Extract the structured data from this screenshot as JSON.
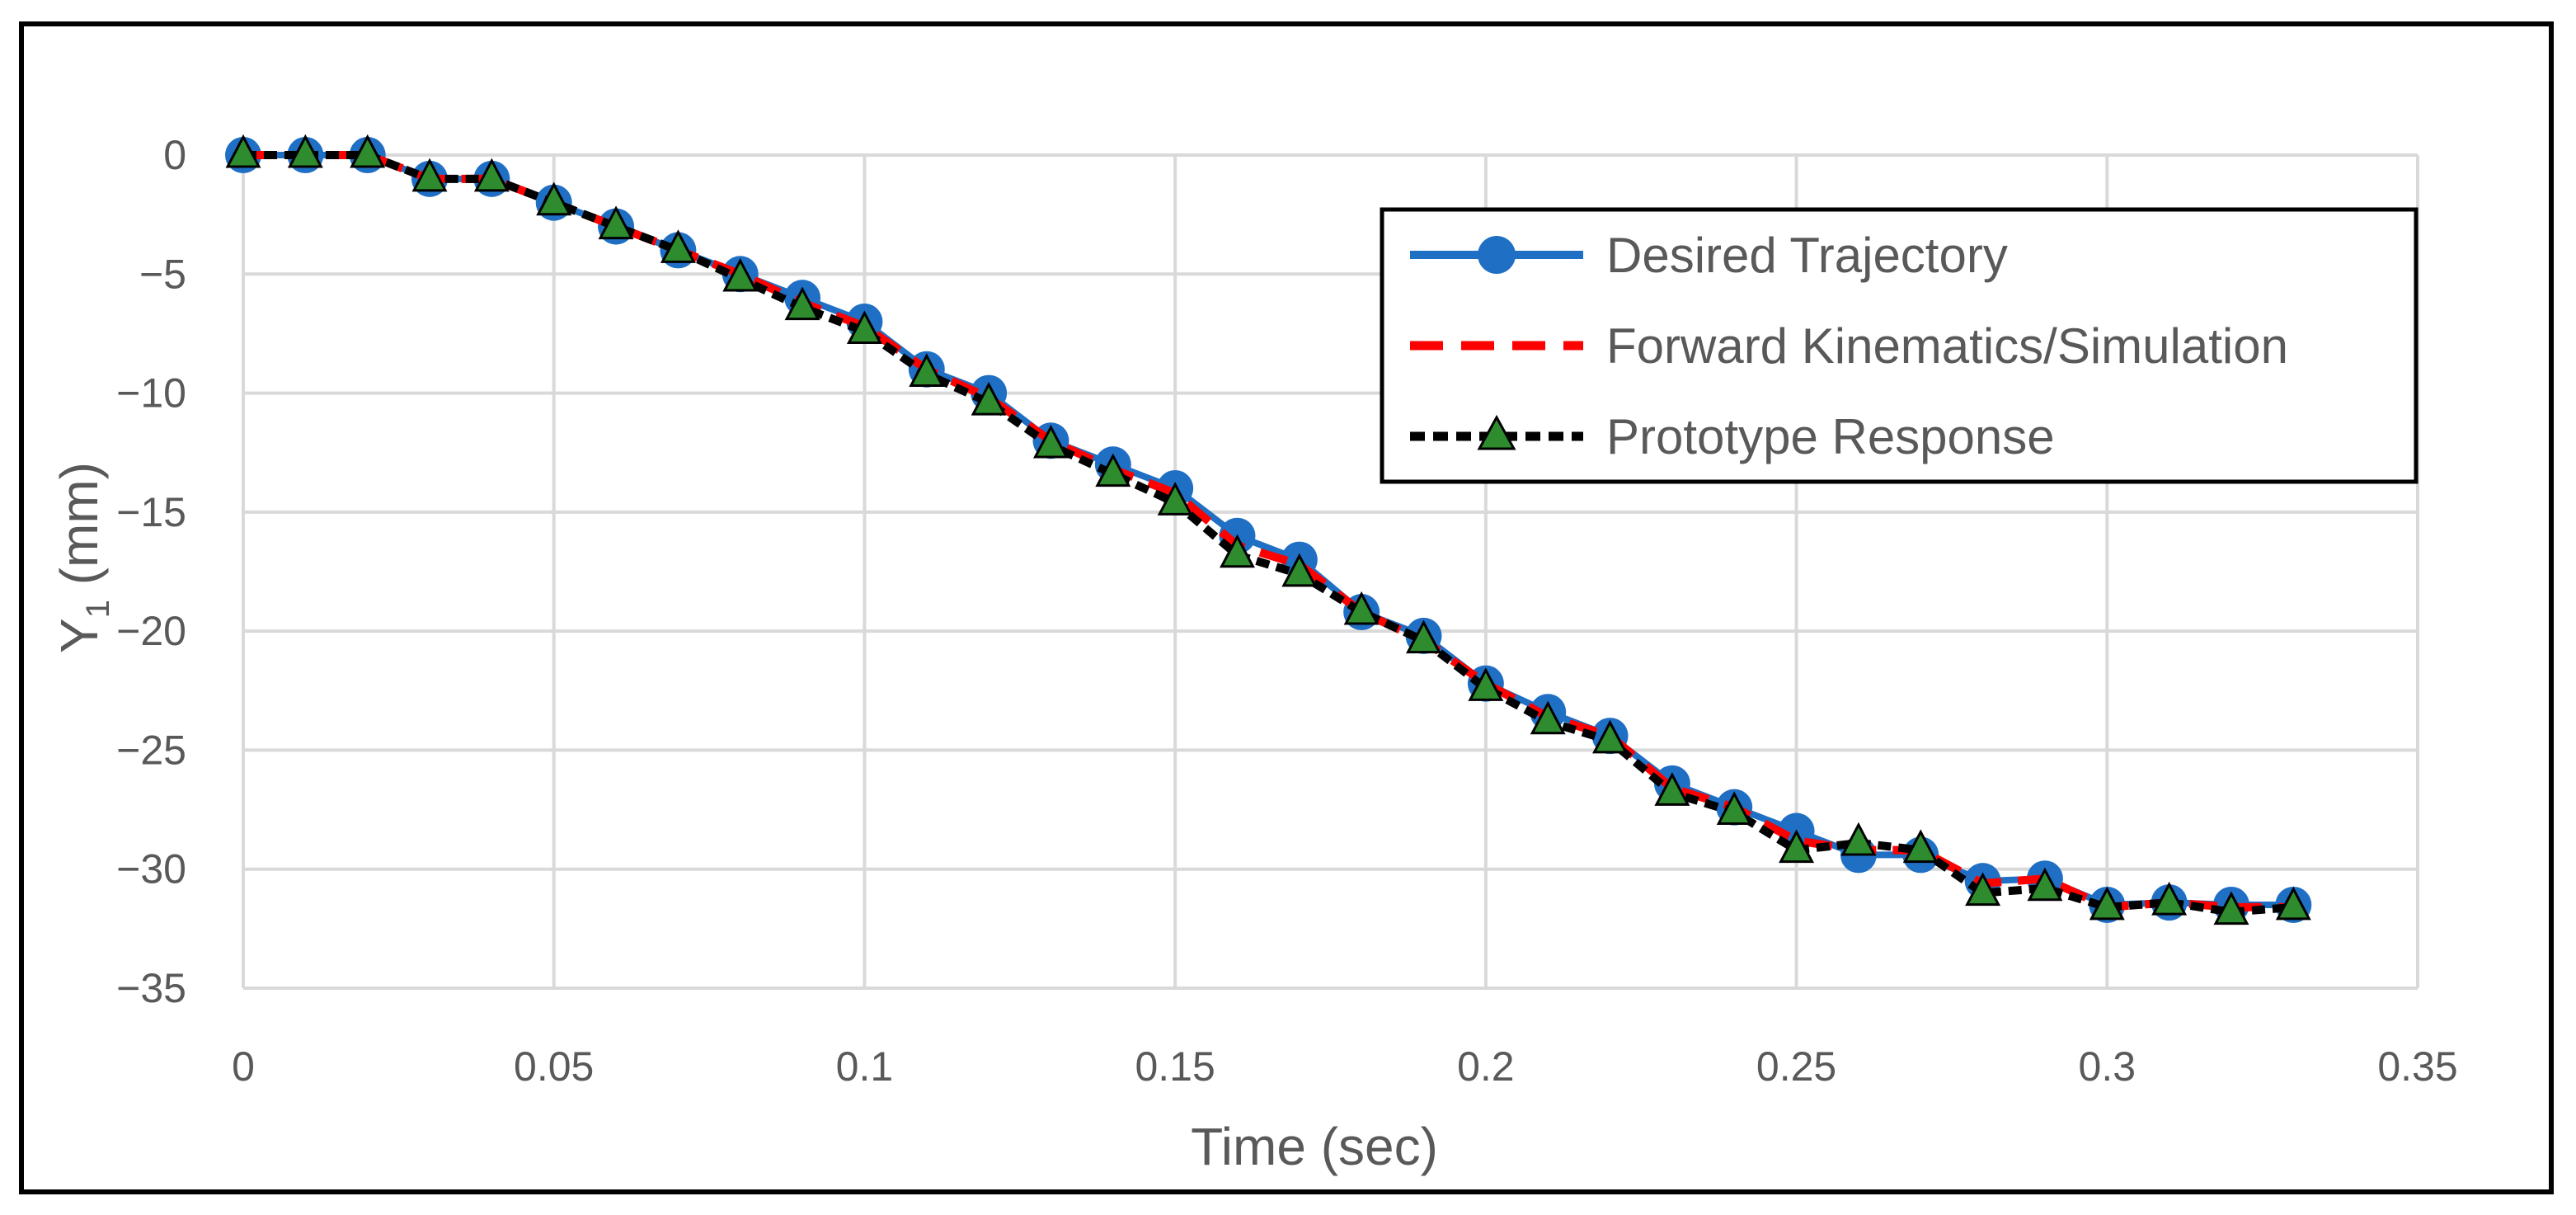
{
  "chart_data": {
    "type": "line",
    "xlabel": "Time (sec)",
    "ylabel": "Y",
    "ylabel_subscript": "1",
    "ylabel_unit": " (mm)",
    "xlim": [
      0,
      0.35
    ],
    "ylim": [
      -35,
      0
    ],
    "x_ticks": [
      0,
      0.05,
      0.1,
      0.15,
      0.2,
      0.25,
      0.3,
      0.35
    ],
    "x_tick_labels": [
      "0",
      "0.05",
      "0.1",
      "0.15",
      "0.2",
      "0.25",
      "0.3",
      "0.35"
    ],
    "y_ticks": [
      0,
      -5,
      -10,
      -15,
      -20,
      -25,
      -30,
      -35
    ],
    "y_tick_labels": [
      "0",
      "−5",
      "−10",
      "−15",
      "−20",
      "−25",
      "−30",
      "−35"
    ],
    "grid": true,
    "legend_position": "top-right",
    "x": [
      0,
      0.01,
      0.02,
      0.03,
      0.04,
      0.05,
      0.06,
      0.07,
      0.08,
      0.09,
      0.1,
      0.11,
      0.12,
      0.13,
      0.14,
      0.15,
      0.16,
      0.17,
      0.18,
      0.19,
      0.2,
      0.21,
      0.22,
      0.23,
      0.24,
      0.25,
      0.26,
      0.27,
      0.28,
      0.29,
      0.3,
      0.31,
      0.32,
      0.33
    ],
    "series": [
      {
        "name": "Desired Trajectory",
        "color": "#1f6fc5",
        "style": "solid-circle",
        "values": [
          0,
          0,
          0,
          -1,
          -1,
          -2,
          -3,
          -4,
          -5,
          -6,
          -7,
          -9,
          -10,
          -12,
          -13,
          -14,
          -16,
          -17,
          -19.2,
          -20.2,
          -22.2,
          -23.4,
          -24.4,
          -26.4,
          -27.4,
          -28.4,
          -29.4,
          -29.4,
          -30.5,
          -30.4,
          -31.5,
          -31.4,
          -31.5,
          -31.5
        ]
      },
      {
        "name": "Forward Kinematics/Simulation",
        "color": "#ff0000",
        "style": "dashed",
        "values": [
          0,
          0,
          0,
          -1,
          -1,
          -2,
          -3,
          -4,
          -5,
          -6.2,
          -7.2,
          -9,
          -10.2,
          -12,
          -13.2,
          -14.2,
          -16.4,
          -17.2,
          -19.2,
          -20.4,
          -22.2,
          -23.6,
          -24.4,
          -26.6,
          -27.4,
          -28.8,
          -29.2,
          -29.2,
          -30.6,
          -30.4,
          -31.6,
          -31.4,
          -31.6,
          -31.6
        ]
      },
      {
        "name": "Prototype Response",
        "color": "#000000",
        "marker_color": "#2e8b2e",
        "style": "dotted-triangle",
        "values": [
          0,
          0,
          0,
          -1,
          -1,
          -2,
          -3,
          -4,
          -5.2,
          -6.4,
          -7.4,
          -9.2,
          -10.4,
          -12.2,
          -13.4,
          -14.6,
          -16.8,
          -17.6,
          -19.2,
          -20.4,
          -22.4,
          -23.8,
          -24.6,
          -26.8,
          -27.6,
          -29.2,
          -28.9,
          -29.2,
          -31,
          -30.8,
          -31.6,
          -31.4,
          -31.8,
          -31.6
        ]
      }
    ]
  }
}
